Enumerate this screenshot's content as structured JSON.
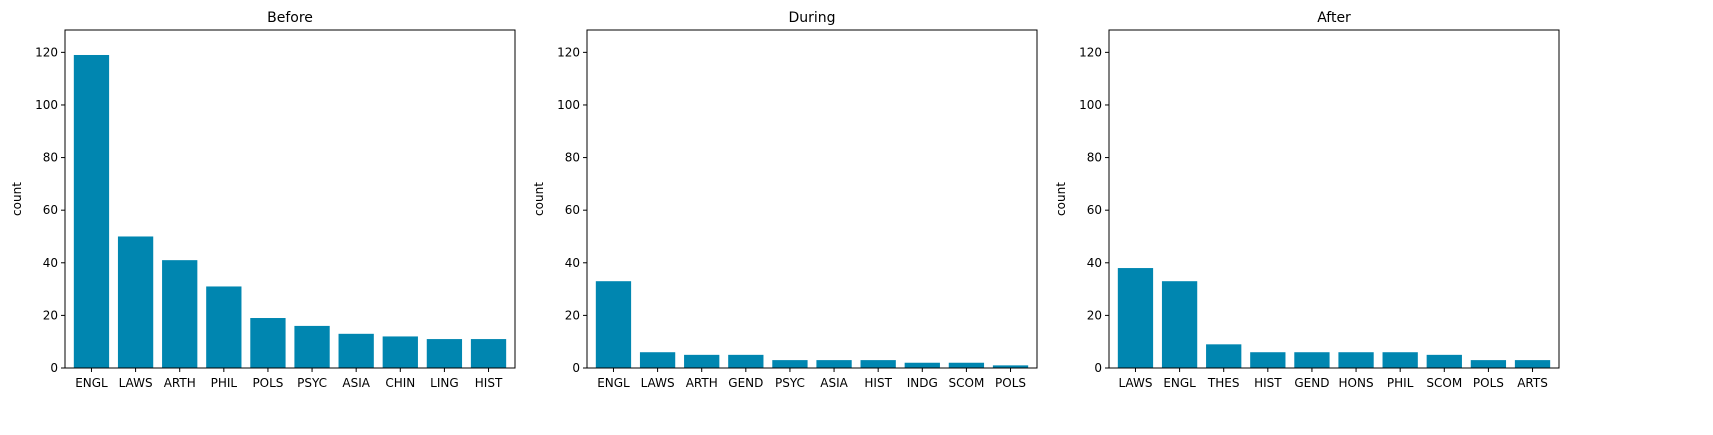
{
  "figure": {
    "bar_color": "#0086B0",
    "axes_color": "#000000",
    "background": "#ffffff"
  },
  "chart_data": [
    {
      "type": "bar",
      "title": "Before",
      "xlabel": "",
      "ylabel": "count",
      "ylim": [
        0,
        128.5
      ],
      "yticks": [
        0,
        20,
        40,
        60,
        80,
        100,
        120
      ],
      "grid": false,
      "categories": [
        "ENGL",
        "LAWS",
        "ARTH",
        "PHIL",
        "POLS",
        "PSYC",
        "ASIA",
        "CHIN",
        "LING",
        "HIST"
      ],
      "values": [
        119,
        50,
        41,
        31,
        19,
        16,
        13,
        12,
        11,
        11
      ]
    },
    {
      "type": "bar",
      "title": "During",
      "xlabel": "",
      "ylabel": "count",
      "ylim": [
        0,
        128.5
      ],
      "yticks": [
        0,
        20,
        40,
        60,
        80,
        100,
        120
      ],
      "grid": false,
      "categories": [
        "ENGL",
        "LAWS",
        "ARTH",
        "GEND",
        "PSYC",
        "ASIA",
        "HIST",
        "INDG",
        "SCOM",
        "POLS"
      ],
      "values": [
        33,
        6,
        5,
        5,
        3,
        3,
        3,
        2,
        2,
        1
      ]
    },
    {
      "type": "bar",
      "title": "After",
      "xlabel": "",
      "ylabel": "count",
      "ylim": [
        0,
        128.5
      ],
      "yticks": [
        0,
        20,
        40,
        60,
        80,
        100,
        120
      ],
      "grid": false,
      "categories": [
        "LAWS",
        "ENGL",
        "THES",
        "HIST",
        "GEND",
        "HONS",
        "PHIL",
        "SCOM",
        "POLS",
        "ARTS"
      ],
      "values": [
        38,
        33,
        9,
        6,
        6,
        6,
        6,
        5,
        3,
        3
      ]
    }
  ]
}
